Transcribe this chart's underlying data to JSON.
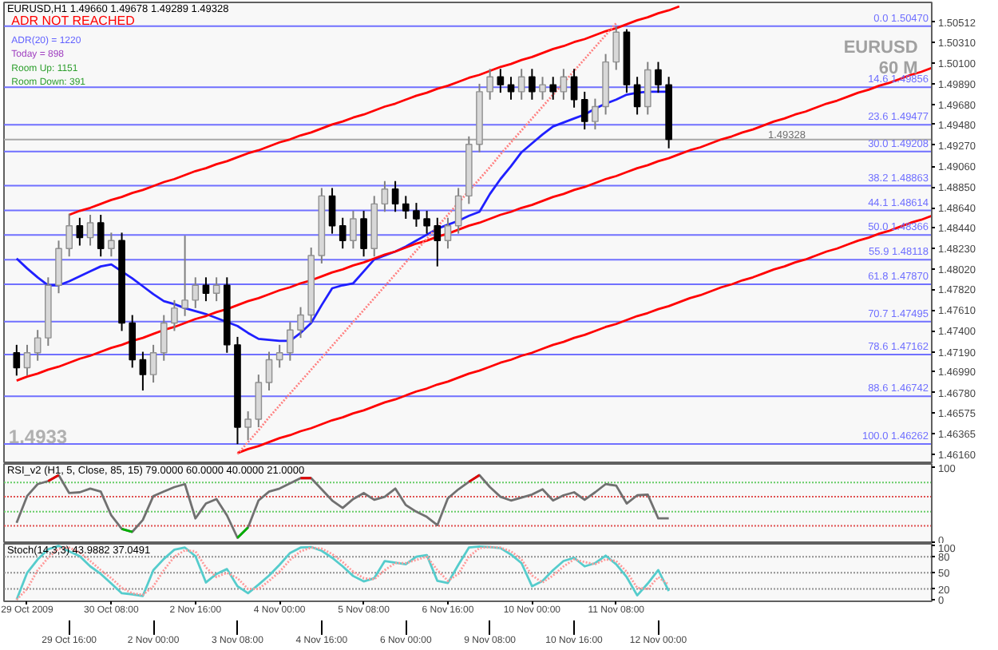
{
  "chart_data": [
    {
      "type": "candlestick",
      "title": "EURUSD,H1  1.49660 1.49678 1.49289 1.49328",
      "annotations": [
        "ADR NOT REACHED",
        "ADR(20) = 1220",
        "Today = 898",
        "Room Up: 1151",
        "Room Down: 391",
        "EURUSD",
        "60 M",
        "1.4933"
      ],
      "ohlc": [
        [
          1.4718,
          1.4726,
          1.4695,
          1.4703
        ],
        [
          1.4703,
          1.4726,
          1.4695,
          1.4718
        ],
        [
          1.4718,
          1.4741,
          1.471,
          1.4733
        ],
        [
          1.4733,
          1.4794,
          1.4725,
          1.4786
        ],
        [
          1.4786,
          1.4831,
          1.4778,
          1.4823
        ],
        [
          1.4823,
          1.4858,
          1.4815,
          1.4846
        ],
        [
          1.4846,
          1.4854,
          1.4826,
          1.4834
        ],
        [
          1.4834,
          1.4857,
          1.4826,
          1.4849
        ],
        [
          1.4849,
          1.4857,
          1.4815,
          1.4823
        ],
        [
          1.4823,
          1.4839,
          1.4815,
          1.4831
        ],
        [
          1.4831,
          1.4839,
          1.474,
          1.4748
        ],
        [
          1.4748,
          1.4756,
          1.4703,
          1.4711
        ],
        [
          1.4711,
          1.4719,
          1.468,
          1.4696
        ],
        [
          1.4696,
          1.4726,
          1.4688,
          1.4718
        ],
        [
          1.4718,
          1.4756,
          1.471,
          1.4748
        ],
        [
          1.4748,
          1.4771,
          1.474,
          1.4763
        ],
        [
          1.4763,
          1.4836,
          1.4755,
          1.4771
        ],
        [
          1.4771,
          1.4794,
          1.4763,
          1.4786
        ],
        [
          1.4786,
          1.4794,
          1.477,
          1.4778
        ],
        [
          1.4778,
          1.4794,
          1.477,
          1.4786
        ],
        [
          1.4786,
          1.4794,
          1.4718,
          1.4726
        ],
        [
          1.4726,
          1.4734,
          1.4626,
          1.4643
        ],
        [
          1.4643,
          1.4659,
          1.463,
          1.4651
        ],
        [
          1.4651,
          1.4696,
          1.4643,
          1.4688
        ],
        [
          1.4688,
          1.4719,
          1.468,
          1.4711
        ],
        [
          1.4711,
          1.4726,
          1.4703,
          1.4718
        ],
        [
          1.4718,
          1.4749,
          1.471,
          1.4741
        ],
        [
          1.4741,
          1.4764,
          1.4733,
          1.4756
        ],
        [
          1.4756,
          1.4824,
          1.4748,
          1.4816
        ],
        [
          1.4816,
          1.4884,
          1.4808,
          1.4876
        ],
        [
          1.4876,
          1.4884,
          1.4838,
          1.4846
        ],
        [
          1.4846,
          1.4854,
          1.4823,
          1.4831
        ],
        [
          1.4831,
          1.4861,
          1.4823,
          1.4853
        ],
        [
          1.4853,
          1.4861,
          1.4815,
          1.4823
        ],
        [
          1.4823,
          1.4876,
          1.4815,
          1.4868
        ],
        [
          1.4868,
          1.4891,
          1.486,
          1.4883
        ],
        [
          1.4883,
          1.4891,
          1.486,
          1.4868
        ],
        [
          1.4868,
          1.4876,
          1.4853,
          1.4861
        ],
        [
          1.4861,
          1.4869,
          1.4845,
          1.4853
        ],
        [
          1.4853,
          1.4861,
          1.4838,
          1.4846
        ],
        [
          1.4846,
          1.4854,
          1.4805,
          1.4831
        ],
        [
          1.4831,
          1.4854,
          1.4823,
          1.4846
        ],
        [
          1.4846,
          1.4884,
          1.4838,
          1.4876
        ],
        [
          1.4876,
          1.4936,
          1.4868,
          1.4928
        ],
        [
          1.4928,
          1.4989,
          1.492,
          1.4981
        ],
        [
          1.4981,
          1.5004,
          1.4973,
          1.4996
        ],
        [
          1.4996,
          1.5004,
          1.498,
          1.4988
        ],
        [
          1.4988,
          1.4996,
          1.4973,
          1.4981
        ],
        [
          1.4981,
          1.5004,
          1.4973,
          1.4996
        ],
        [
          1.4996,
          1.5004,
          1.4973,
          1.4981
        ],
        [
          1.4981,
          1.4996,
          1.4973,
          1.4988
        ],
        [
          1.4988,
          1.4996,
          1.4973,
          1.4981
        ],
        [
          1.4981,
          1.5004,
          1.4973,
          1.4996
        ],
        [
          1.4996,
          1.5004,
          1.4965,
          1.4973
        ],
        [
          1.4973,
          1.4981,
          1.4943,
          1.4951
        ],
        [
          1.4951,
          1.4974,
          1.4943,
          1.4966
        ],
        [
          1.4966,
          1.5019,
          1.4958,
          1.5011
        ],
        [
          1.5011,
          1.5047,
          1.5003,
          1.5041
        ],
        [
          1.5041,
          1.5044,
          1.498,
          1.4988
        ],
        [
          1.4988,
          1.4996,
          1.4958,
          1.4966
        ],
        [
          1.4966,
          1.5011,
          1.4958,
          1.5003
        ],
        [
          1.5003,
          1.5011,
          1.498,
          1.4988
        ],
        [
          1.4988,
          1.4996,
          1.4924,
          1.4933
        ],
        null,
        null,
        null,
        null,
        null,
        null,
        null,
        null,
        null,
        null,
        null,
        null,
        null,
        null,
        null,
        null,
        null,
        null,
        null,
        null,
        null,
        null,
        null,
        null,
        null
      ],
      "series": [
        {
          "type": "line",
          "color": "#2020ff",
          "values": [
            1.4813,
            1.4803,
            1.4794,
            1.4786,
            1.4786,
            1.479,
            1.4795,
            1.48,
            1.4805,
            1.4807,
            1.48,
            1.4793,
            1.4785,
            1.4777,
            1.477,
            1.4767,
            1.4763,
            1.476,
            1.4757,
            1.4753,
            1.4749,
            1.4745,
            1.4738,
            1.4732,
            1.4731,
            1.473,
            1.473,
            1.4738,
            1.4748,
            1.4766,
            1.4783,
            1.4786,
            1.4788,
            1.48,
            1.4812,
            1.4816,
            1.482,
            1.4825,
            1.4831,
            1.4837,
            1.4843,
            1.4847,
            1.4851,
            1.4856,
            1.486,
            1.4878,
            1.4893,
            1.4906,
            1.492,
            1.4929,
            1.4938,
            1.4946,
            1.495,
            1.4954,
            1.4958,
            1.4964,
            1.4969,
            1.4973,
            1.4978,
            1.498,
            1.4981,
            1.4981,
            1.4981,
            null,
            null,
            null,
            null,
            null,
            null,
            null,
            null,
            null,
            null,
            null,
            null,
            null,
            null,
            null,
            null,
            null,
            null,
            null,
            null,
            null,
            null,
            null,
            null,
            null
          ]
        },
        {
          "type": "line",
          "color": "#ff0000",
          "values": [
            null,
            null,
            null,
            null,
            null,
            1.4857,
            1.4861,
            1.4864,
            1.4868,
            1.4872,
            1.4875,
            1.4879,
            1.4882,
            1.4886,
            1.489,
            1.4893,
            1.4897,
            1.4901,
            1.4904,
            1.4908,
            1.4911,
            1.4915,
            1.4919,
            1.4922,
            1.4926,
            1.493,
            1.4933,
            1.4937,
            1.494,
            1.4944,
            1.4948,
            1.4951,
            1.4955,
            1.4958,
            1.4962,
            1.4966,
            1.4969,
            1.4973,
            1.4977,
            1.498,
            1.4984,
            1.4987,
            1.4991,
            1.4995,
            1.4998,
            1.5002,
            1.5006,
            1.5009,
            1.5013,
            1.5016,
            1.502,
            1.5024,
            1.5027,
            1.5031,
            1.5034,
            1.5038,
            1.5042,
            1.5045,
            1.5049,
            1.5053,
            1.5056,
            1.506,
            1.5063,
            1.5067,
            null,
            null,
            null,
            null,
            null,
            null,
            null,
            null,
            null,
            null,
            null,
            null,
            null,
            null,
            null,
            null,
            null,
            null,
            null,
            null,
            null,
            null,
            null,
            null
          ]
        },
        {
          "type": "line",
          "color": "#ff0000",
          "values": [
            1.469,
            1.4694,
            1.4697,
            1.4701,
            1.4704,
            1.4708,
            1.4712,
            1.4715,
            1.4719,
            1.4723,
            1.4726,
            1.473,
            1.4733,
            1.4737,
            1.4741,
            1.4744,
            1.4748,
            1.4752,
            1.4755,
            1.4759,
            1.4762,
            1.4766,
            1.477,
            1.4773,
            1.4777,
            1.4781,
            1.4784,
            1.4788,
            1.4791,
            1.4795,
            1.4799,
            1.4802,
            1.4806,
            1.4809,
            1.4813,
            1.4817,
            1.482,
            1.4824,
            1.4828,
            1.4831,
            1.4835,
            1.4838,
            1.4842,
            1.4846,
            1.4849,
            1.4853,
            1.4857,
            1.486,
            1.4864,
            1.4867,
            1.4871,
            1.4875,
            1.4878,
            1.4882,
            1.4885,
            1.4889,
            1.4893,
            1.4896,
            1.49,
            1.4904,
            1.4907,
            1.4911,
            1.4914,
            1.4918,
            1.4922,
            1.4925,
            1.4929,
            1.4933,
            1.4936,
            1.494,
            1.4943,
            1.4947,
            1.4951,
            1.4954,
            1.4958,
            1.4961,
            1.4965,
            1.4969,
            1.4972,
            1.4976,
            1.498,
            1.4983,
            1.4987,
            1.499,
            1.4994,
            1.4998,
            1.5001,
            1.5005
          ]
        },
        {
          "type": "line",
          "color": "#ff0000",
          "values": [
            null,
            null,
            null,
            null,
            null,
            null,
            null,
            null,
            null,
            null,
            null,
            null,
            null,
            null,
            null,
            null,
            null,
            null,
            null,
            null,
            null,
            1.4617,
            1.4621,
            1.4624,
            1.4628,
            1.4632,
            1.4635,
            1.4639,
            1.4642,
            1.4646,
            1.465,
            1.4653,
            1.4657,
            1.466,
            1.4664,
            1.4668,
            1.4671,
            1.4675,
            1.4679,
            1.4682,
            1.4686,
            1.4689,
            1.4693,
            1.4697,
            1.47,
            1.4704,
            1.4708,
            1.4711,
            1.4715,
            1.4718,
            1.4722,
            1.4726,
            1.4729,
            1.4733,
            1.4736,
            1.474,
            1.4744,
            1.4747,
            1.4751,
            1.4755,
            1.4758,
            1.4762,
            1.4765,
            1.4769,
            1.4773,
            1.4776,
            1.478,
            1.4784,
            1.4787,
            1.4791,
            1.4794,
            1.4798,
            1.4802,
            1.4805,
            1.4809,
            1.4812,
            1.4816,
            1.482,
            1.4823,
            1.4827,
            1.4831,
            1.4834,
            1.4838,
            1.4841,
            1.4845,
            1.4849,
            1.4852,
            1.4856
          ]
        },
        {
          "type": "line",
          "color": "#ff8080",
          "line_style": "dotted",
          "values": [
            null,
            null,
            null,
            null,
            null,
            null,
            null,
            null,
            null,
            null,
            null,
            null,
            null,
            null,
            null,
            null,
            null,
            null,
            null,
            null,
            null,
            1.4616,
            1.4628,
            1.464,
            1.4653,
            1.4665,
            1.4677,
            1.4689,
            1.4701,
            1.4713,
            1.4725,
            1.4737,
            1.4749,
            1.4761,
            1.4773,
            1.4785,
            1.4797,
            1.4809,
            1.4821,
            1.4833,
            1.4845,
            1.4857,
            1.4869,
            1.4881,
            1.4893,
            1.4905,
            1.4918,
            1.493,
            1.4942,
            1.4954,
            1.4966,
            1.4978,
            1.499,
            1.5002,
            1.5014,
            1.5026,
            1.5038,
            1.505,
            null,
            null,
            null,
            null,
            null,
            null,
            null,
            null,
            null,
            null,
            null,
            null,
            null,
            null,
            null,
            null,
            null,
            null,
            null,
            null,
            null,
            null,
            null,
            null,
            null,
            null,
            null,
            null,
            null,
            null
          ]
        }
      ],
      "ref_lines": [
        {
          "axis": "y",
          "value": 1.5047,
          "label": "0.0 1.50470",
          "color": "#7070ff"
        },
        {
          "axis": "y",
          "value": 1.49856,
          "label": "14.6 1.49856",
          "color": "#7070ff"
        },
        {
          "axis": "y",
          "value": 1.49477,
          "label": "23.6 1.49477",
          "color": "#7070ff"
        },
        {
          "axis": "y",
          "value": 1.49208,
          "label": "30.0 1.49208",
          "color": "#7070ff"
        },
        {
          "axis": "y",
          "value": 1.48863,
          "label": "38.2 1.48863",
          "color": "#7070ff"
        },
        {
          "axis": "y",
          "value": 1.48614,
          "label": "44.1 1.48614",
          "color": "#7070ff"
        },
        {
          "axis": "y",
          "value": 1.48366,
          "label": "50.0 1.48366",
          "color": "#7070ff"
        },
        {
          "axis": "y",
          "value": 1.48118,
          "label": "55.9 1.48118",
          "color": "#7070ff"
        },
        {
          "axis": "y",
          "value": 1.4787,
          "label": "61.8 1.47870",
          "color": "#7070ff"
        },
        {
          "axis": "y",
          "value": 1.47495,
          "label": "70.7 1.47495",
          "color": "#7070ff"
        },
        {
          "axis": "y",
          "value": 1.47162,
          "label": "78.6 1.47162",
          "color": "#7070ff"
        },
        {
          "axis": "y",
          "value": 1.46742,
          "label": "88.6 1.46742",
          "color": "#7070ff"
        },
        {
          "axis": "y",
          "value": 1.46262,
          "label": "100.0 1.46262",
          "color": "#7070ff"
        },
        {
          "axis": "y",
          "value": 1.49328,
          "label": "1.49328",
          "color": "#a8a8a8"
        }
      ],
      "ylim": [
        1.4606,
        1.5071
      ],
      "yticks": [
        {
          "value": 1.50512,
          "label": "1.50512"
        },
        {
          "value": 1.5031,
          "label": "1.50310"
        },
        {
          "value": 1.501,
          "label": "1.50100"
        },
        {
          "value": 1.4989,
          "label": "1.49890"
        },
        {
          "value": 1.4968,
          "label": "1.49680"
        },
        {
          "value": 1.4948,
          "label": "1.49480"
        },
        {
          "value": 1.4927,
          "label": "1.49270"
        },
        {
          "value": 1.4906,
          "label": "1.49060"
        },
        {
          "value": 1.4885,
          "label": "1.48850"
        },
        {
          "value": 1.4864,
          "label": "1.48640"
        },
        {
          "value": 1.4844,
          "label": "1.48440"
        },
        {
          "value": 1.4823,
          "label": "1.48230"
        },
        {
          "value": 1.4802,
          "label": "1.48020"
        },
        {
          "value": 1.4782,
          "label": "1.47820"
        },
        {
          "value": 1.4761,
          "label": "1.47610"
        },
        {
          "value": 1.474,
          "label": "1.47400"
        },
        {
          "value": 1.4719,
          "label": "1.47190"
        },
        {
          "value": 1.4699,
          "label": "1.46990"
        },
        {
          "value": 1.4678,
          "label": "1.46780"
        },
        {
          "value": 1.46575,
          "label": "1.46575"
        },
        {
          "value": 1.46365,
          "label": "1.46365"
        },
        {
          "value": 1.4616,
          "label": "1.46160"
        }
      ],
      "tick_labels": "y"
    },
    {
      "type": "line",
      "title": "RSI_v2 (H1, 5, Close, 85, 15) 79.0000 60.0000 40.0000 21.0000",
      "series": [
        {
          "color": "#707070",
          "values": [
            25,
            61,
            77,
            81,
            89,
            65,
            66,
            71,
            67,
            35,
            17,
            13,
            29,
            61,
            67,
            73,
            77,
            31,
            51,
            57,
            35,
            5,
            19,
            55,
            67,
            71,
            78,
            85,
            85,
            70,
            55,
            45,
            57,
            65,
            56,
            60,
            71,
            49,
            40,
            33,
            22,
            58,
            70,
            80,
            89,
            73,
            60,
            55,
            59,
            63,
            70,
            55,
            62,
            66,
            56,
            66,
            77,
            75,
            51,
            62,
            63,
            31,
            31,
            null,
            null,
            null,
            null,
            null,
            null,
            null,
            null,
            null,
            null,
            null,
            null,
            null,
            null,
            null,
            null,
            null,
            null,
            null,
            null,
            null,
            null,
            null,
            null,
            null
          ]
        },
        {
          "color": "#e00000",
          "values": [
            null,
            null,
            null,
            81,
            89,
            null,
            null,
            null,
            null,
            null,
            null,
            null,
            null,
            null,
            null,
            null,
            null,
            null,
            null,
            null,
            null,
            null,
            null,
            null,
            null,
            null,
            null,
            85,
            85,
            null,
            null,
            null,
            null,
            null,
            null,
            null,
            null,
            null,
            null,
            null,
            null,
            null,
            null,
            80,
            89,
            null,
            null,
            null,
            null,
            null,
            null,
            null,
            null,
            null,
            null,
            null,
            null,
            null,
            null,
            null,
            null,
            null,
            null,
            null,
            null,
            null,
            null,
            null,
            null,
            null,
            null,
            null,
            null,
            null,
            null,
            null,
            null,
            null,
            null,
            null,
            null,
            null,
            null,
            null,
            null,
            null,
            null,
            null
          ]
        },
        {
          "color": "#00b000",
          "values": [
            null,
            null,
            null,
            null,
            null,
            null,
            null,
            null,
            null,
            null,
            17,
            13,
            null,
            null,
            null,
            null,
            null,
            null,
            null,
            null,
            null,
            5,
            19,
            null,
            null,
            null,
            null,
            null,
            null,
            null,
            null,
            null,
            null,
            null,
            null,
            null,
            null,
            null,
            null,
            null,
            null,
            null,
            null,
            null,
            null,
            null,
            null,
            null,
            null,
            null,
            null,
            null,
            null,
            null,
            null,
            null,
            null,
            null,
            null,
            null,
            null,
            null,
            null,
            null,
            null,
            null,
            null,
            null,
            null,
            null,
            null,
            null,
            null,
            null,
            null,
            null,
            null,
            null,
            null,
            null,
            null,
            null,
            null,
            null,
            null,
            null,
            null,
            null
          ]
        }
      ],
      "ref_lines": [
        {
          "axis": "y",
          "value": 79,
          "color": "#66cc66",
          "line_style": "dotted"
        },
        {
          "axis": "y",
          "value": 60,
          "color": "#e05050",
          "line_style": "dotted"
        },
        {
          "axis": "y",
          "value": 40,
          "color": "#66cc66",
          "line_style": "dotted"
        },
        {
          "axis": "y",
          "value": 21,
          "color": "#e05050",
          "line_style": "dotted"
        }
      ],
      "ylim": [
        -3,
        104
      ],
      "yticks": [
        0,
        100
      ],
      "tick_labels": "y"
    },
    {
      "type": "line",
      "title": "Stoch(14,3,3) 43.9882 37.0491",
      "categories": [
        null,
        "29 Oct 2009",
        null,
        null,
        null,
        "29 Oct 16:00",
        null,
        null,
        null,
        "30 Oct 08:00",
        null,
        null,
        null,
        "2 Nov 00:00",
        null,
        null,
        null,
        "2 Nov 16:00",
        null,
        null,
        null,
        "3 Nov 08:00",
        null,
        null,
        null,
        "4 Nov 00:00",
        null,
        null,
        null,
        "4 Nov 16:00",
        null,
        null,
        null,
        "5 Nov 08:00",
        null,
        null,
        null,
        "6 Nov 00:00",
        null,
        null,
        null,
        "6 Nov 16:00",
        null,
        null,
        null,
        "9 Nov 08:00",
        null,
        null,
        null,
        "10 Nov 00:00",
        null,
        null,
        null,
        "10 Nov 16:00",
        null,
        null,
        null,
        "11 Nov 08:00",
        null,
        null,
        null,
        "12 Nov 00:00",
        null,
        null,
        null,
        null,
        null,
        null,
        null,
        null,
        null,
        null,
        null,
        null,
        null,
        null,
        null,
        null,
        null,
        null,
        null,
        null,
        null,
        null,
        null,
        null,
        null,
        null
      ],
      "series": [
        {
          "color": "#55cccc",
          "values": [
            0,
            50,
            75,
            94,
            100,
            90,
            81,
            62,
            48,
            30,
            12,
            10,
            7,
            55,
            76,
            93,
            97,
            81,
            32,
            48,
            57,
            25,
            12,
            28,
            45,
            65,
            87,
            97,
            98,
            91,
            78,
            62,
            44,
            34,
            40,
            72,
            69,
            66,
            80,
            83,
            35,
            31,
            65,
            97,
            99,
            98,
            96,
            84,
            68,
            25,
            35,
            55,
            72,
            78,
            62,
            68,
            82,
            66,
            42,
            8,
            30,
            55,
            16,
            null,
            null,
            null,
            null,
            null,
            null,
            null,
            null,
            null,
            null,
            null,
            null,
            null,
            null,
            null,
            null,
            null,
            null,
            null,
            null,
            null,
            null,
            null,
            null,
            null
          ]
        },
        {
          "color": "#ff9999",
          "line_style": "dotted",
          "values": [
            0,
            20,
            55,
            78,
            95,
            97,
            88,
            72,
            55,
            40,
            22,
            12,
            9,
            25,
            55,
            80,
            92,
            90,
            60,
            42,
            50,
            40,
            20,
            20,
            35,
            52,
            74,
            90,
            97,
            95,
            85,
            70,
            52,
            40,
            38,
            55,
            68,
            68,
            74,
            80,
            55,
            35,
            48,
            80,
            96,
            98,
            97,
            90,
            75,
            45,
            32,
            45,
            62,
            75,
            70,
            66,
            75,
            72,
            52,
            22,
            20,
            42,
            28,
            null,
            null,
            null,
            null,
            null,
            null,
            null,
            null,
            null,
            null,
            null,
            null,
            null,
            null,
            null,
            null,
            null,
            null,
            null,
            null,
            null,
            null,
            null,
            null,
            null
          ]
        }
      ],
      "ref_lines": [
        {
          "axis": "y",
          "value": 80,
          "color": "#909090",
          "line_style": "dotted"
        },
        {
          "axis": "y",
          "value": 50,
          "color": "#909090",
          "line_style": "dotted"
        },
        {
          "axis": "y",
          "value": 20,
          "color": "#909090",
          "line_style": "dotted"
        }
      ],
      "ylim": [
        -3,
        104
      ],
      "yticks": [
        0,
        20,
        50,
        80,
        100
      ]
    }
  ]
}
